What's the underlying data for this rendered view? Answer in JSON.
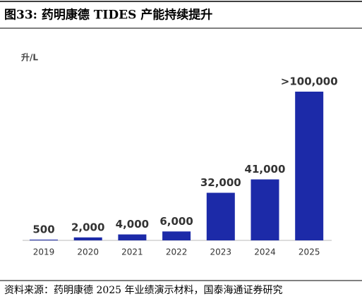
{
  "chart_data": {
    "type": "bar",
    "title": "图33:  药明康德 TIDES 产能持续提升",
    "y_label": "升/L",
    "categories": [
      "2019",
      "2020",
      "2021",
      "2022",
      "2023",
      "2024",
      "2025"
    ],
    "values": [
      500,
      2000,
      4000,
      6000,
      32000,
      41000,
      100000
    ],
    "value_labels": [
      "500",
      "2,000",
      "4,000",
      "6,000",
      "32,000",
      "41,000",
      ">100,000"
    ],
    "color": "#1c2aa8"
  },
  "source": "资料来源：药明康德 2025 年业绩演示材料，国泰海通证券研究"
}
